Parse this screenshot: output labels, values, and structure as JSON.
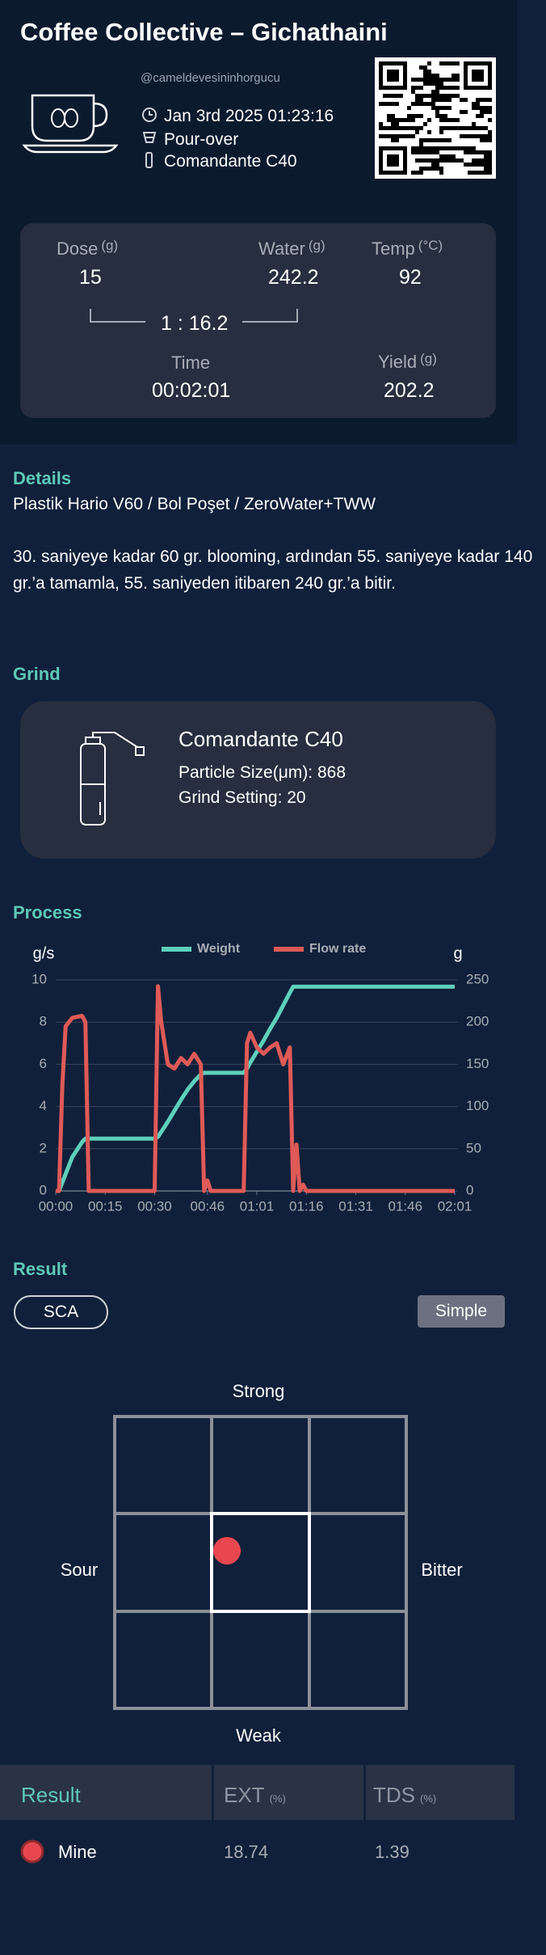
{
  "header": {
    "title": "Coffee Collective – Gichathaini",
    "username": "@cameldevesininhorgucu",
    "date": "Jan 3rd 2025 01:23:16",
    "method": "Pour-over",
    "grinder": "Comandante C40"
  },
  "recipe": {
    "dose": {
      "label": "Dose",
      "unit": "(g)",
      "value": "15"
    },
    "water": {
      "label": "Water",
      "unit": "(g)",
      "value": "242.2"
    },
    "temp": {
      "label": "Temp",
      "unit": "(°C)",
      "value": "92"
    },
    "ratio": "1 : 16.2",
    "time": {
      "label": "Time",
      "value": "00:02:01"
    },
    "yield": {
      "label": "Yield",
      "unit": "(g)",
      "value": "202.2"
    }
  },
  "details": {
    "heading": "Details",
    "equipment": "Plastik Hario V60 / Bol Poşet / ZeroWater+TWW",
    "notes": "30. saniyeye kadar 60 gr. blooming, ardından 55. saniyeye kadar 140 gr.’a tamamla, 55. saniyeden itibaren 240 gr.’a bitir."
  },
  "grind": {
    "heading": "Grind",
    "grinder": "Comandante C40",
    "particle_size": "Particle Size(μm): 868",
    "grind_setting": "Grind Setting: 20"
  },
  "process": {
    "heading": "Process"
  },
  "chart_data": {
    "type": "line",
    "ylabel": "g/s",
    "y2label": "g",
    "legend": "top",
    "grid": true,
    "x": [
      0,
      1,
      2,
      3,
      5,
      8,
      9,
      10,
      12,
      20,
      29,
      30,
      31,
      32,
      34,
      36,
      38,
      40,
      42,
      44,
      45,
      46,
      47,
      56,
      57,
      58,
      59,
      61,
      63,
      65,
      67,
      69,
      71,
      72,
      73,
      74,
      75,
      76,
      90,
      105,
      121
    ],
    "xlim": [
      0,
      121
    ],
    "xticks": [
      {
        "value": 0,
        "label": "00:00"
      },
      {
        "value": 15,
        "label": "00:15"
      },
      {
        "value": 30,
        "label": "00:30"
      },
      {
        "value": 46,
        "label": "00:46"
      },
      {
        "value": 61,
        "label": "01:01"
      },
      {
        "value": 76,
        "label": "01:16"
      },
      {
        "value": 91,
        "label": "01:31"
      },
      {
        "value": 106,
        "label": "01:46"
      },
      {
        "value": 121,
        "label": "02:01"
      }
    ],
    "ylim": [
      0,
      10
    ],
    "yticks": [
      0,
      2,
      4,
      6,
      8,
      10
    ],
    "y2lim": [
      0,
      250
    ],
    "y2ticks": [
      0,
      50,
      100,
      150,
      200,
      250
    ],
    "series": [
      {
        "name": "Weight",
        "color": "#5ed0bc",
        "axis": "y2",
        "values": [
          0,
          0,
          10,
          20,
          40,
          58,
          62,
          62,
          62,
          62,
          62,
          62,
          64,
          70,
          82,
          95,
          108,
          120,
          130,
          138,
          140,
          140,
          140,
          140,
          140,
          145,
          152,
          165,
          178,
          192,
          205,
          220,
          235,
          242,
          242,
          242,
          242,
          242,
          242,
          242,
          242
        ]
      },
      {
        "name": "Flow rate",
        "color": "#e05a57",
        "values": [
          0,
          0,
          5,
          7.8,
          8.2,
          8.3,
          8,
          0,
          0,
          0,
          0,
          0,
          9.7,
          8,
          6,
          5.8,
          6.3,
          6,
          6.5,
          6,
          0,
          0.5,
          0,
          0,
          0,
          7,
          7.5,
          6.8,
          6.5,
          6.8,
          7,
          6,
          6.8,
          0,
          2.2,
          0,
          0.3,
          0,
          0,
          0,
          0
        ]
      }
    ]
  },
  "result": {
    "heading": "Result",
    "buttons": [
      "SCA",
      "Simple"
    ],
    "compass": {
      "top": "Strong",
      "bottom": "Weak",
      "left": "Sour",
      "right": "Bitter"
    },
    "table": {
      "headers": [
        {
          "label": "Result"
        },
        {
          "label": "EXT",
          "unit": "(%)"
        },
        {
          "label": "TDS",
          "unit": "(%)"
        }
      ],
      "rows": [
        [
          "Mine",
          "18.74",
          "1.39"
        ]
      ]
    }
  }
}
